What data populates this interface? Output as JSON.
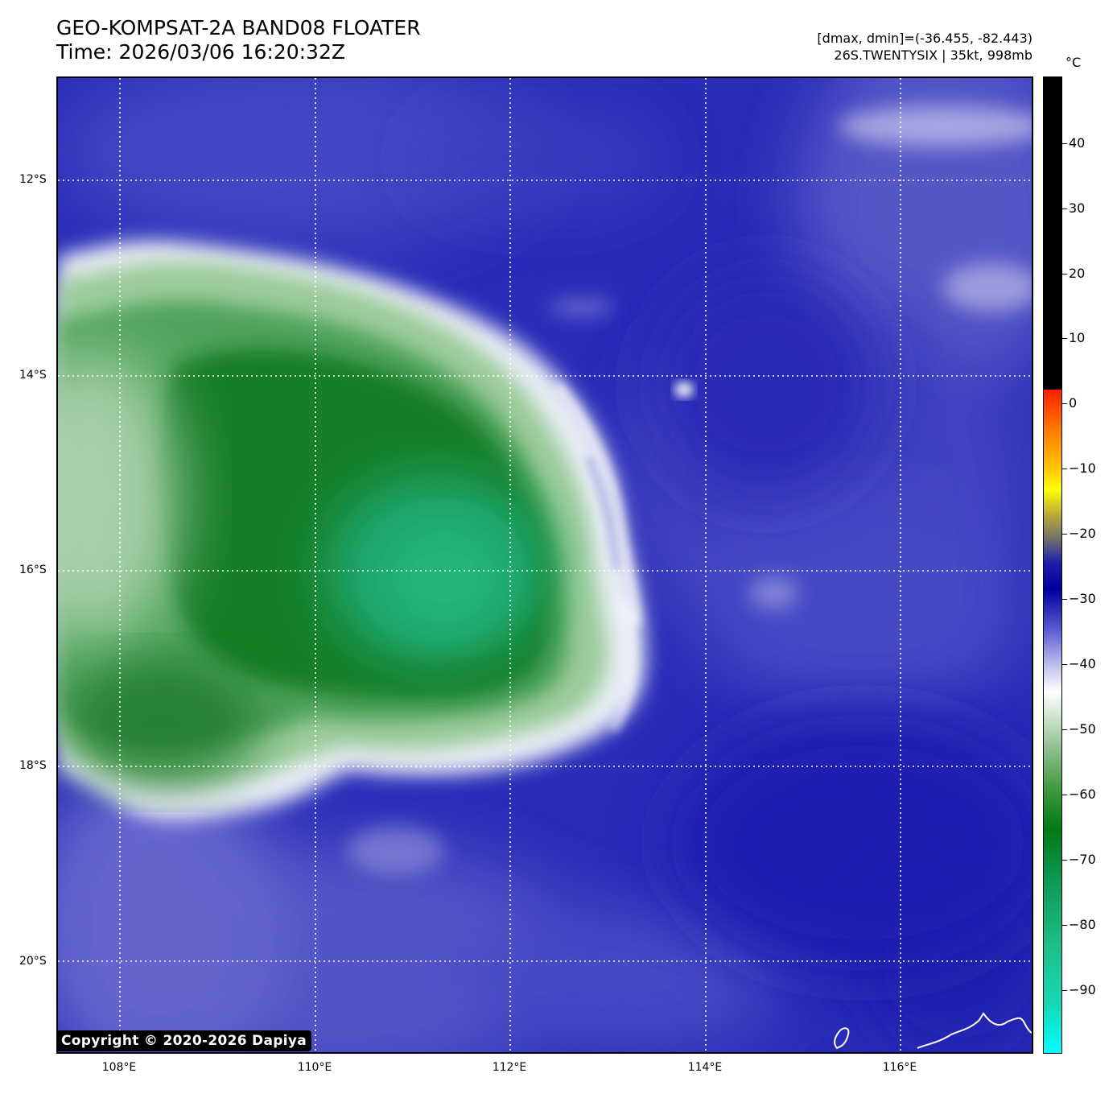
{
  "header": {
    "title_line1": "GEO-KOMPSAT-2A BAND08 FLOATER",
    "title_line2": "Time: 2026/03/06 16:20:32Z",
    "range_info": "[dmax, dmin]=(-36.455, -82.443)",
    "storm_info": "26S.TWENTYSIX | 35kt, 998mb"
  },
  "map": {
    "lat_labels": [
      "12°S",
      "14°S",
      "16°S",
      "18°S",
      "20°S"
    ],
    "lon_labels": [
      "108°E",
      "110°E",
      "112°E",
      "114°E",
      "116°E"
    ],
    "grid_style": "dotted white",
    "coastline_color": "#ffffff",
    "copyright": "Copyright © 2020-2026 Dapiya"
  },
  "colorbar": {
    "unit": "°C",
    "tick_labels": [
      "40",
      "30",
      "20",
      "10",
      "0",
      "−10",
      "−20",
      "−30",
      "−40",
      "−50",
      "−60",
      "−70",
      "−80",
      "−90"
    ],
    "colors": {
      "warm_above_2": "#000000",
      "red": "#ff1e00",
      "yellow": "#ffff00",
      "blue": "#0000a0",
      "white": "#ffffff",
      "green": "#007a14",
      "cyan": "#00ffff"
    }
  }
}
